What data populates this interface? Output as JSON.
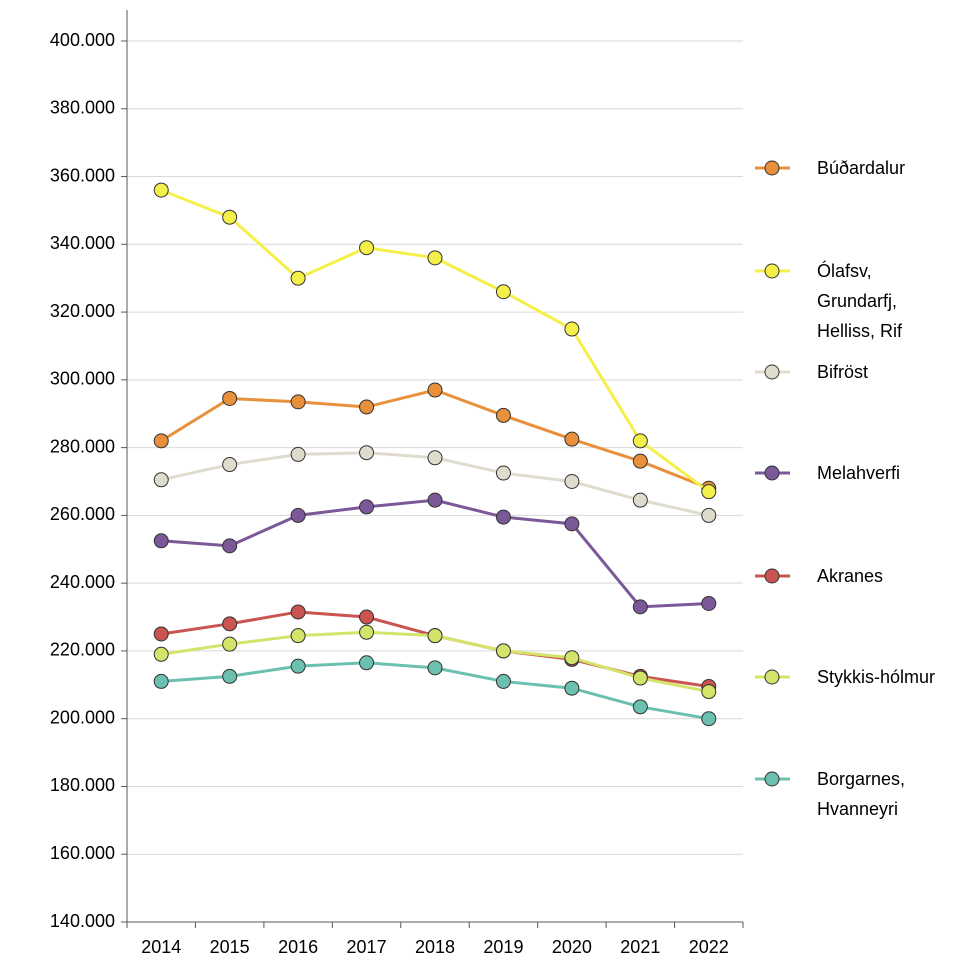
{
  "chart_data": {
    "type": "line",
    "categories": [
      "2014",
      "2015",
      "2016",
      "2017",
      "2018",
      "2019",
      "2020",
      "2021",
      "2022"
    ],
    "series": [
      {
        "name": "Búðardalur",
        "color": "#e8903c",
        "values": [
          282000,
          294500,
          293500,
          292000,
          297000,
          289500,
          282500,
          276000,
          268000
        ]
      },
      {
        "name": "Ólafsv, Grundarfj, Helliss, Rif",
        "color": "#f5ef4a",
        "values": [
          356000,
          348000,
          330000,
          339000,
          336000,
          326000,
          315000,
          282000,
          267000
        ]
      },
      {
        "name": "Bifröst",
        "color": "#e0dccd",
        "values": [
          270500,
          275000,
          278000,
          278500,
          277000,
          272500,
          270000,
          264500,
          260000
        ]
      },
      {
        "name": "Melahverfi",
        "color": "#7b5898",
        "values": [
          252500,
          251000,
          260000,
          262500,
          264500,
          259500,
          257500,
          233000,
          234000
        ]
      },
      {
        "name": "Akranes",
        "color": "#c95450",
        "values": [
          225000,
          228000,
          231500,
          230000,
          224500,
          220000,
          217500,
          212500,
          209500
        ]
      },
      {
        "name": "Stykkis-hólmur",
        "color": "#d4e46a",
        "values": [
          219000,
          222000,
          224500,
          225500,
          224500,
          220000,
          218000,
          212000,
          208000
        ]
      },
      {
        "name": "Borgarnes, Hvanneyri",
        "color": "#6cc0b0",
        "values": [
          211000,
          212500,
          215500,
          216500,
          215000,
          211000,
          209000,
          203500,
          200000
        ]
      }
    ],
    "ylim": [
      140000,
      400000
    ],
    "yticks": [
      {
        "value": 140000,
        "label": "140.000"
      },
      {
        "value": 160000,
        "label": "160.000"
      },
      {
        "value": 180000,
        "label": "180.000"
      },
      {
        "value": 200000,
        "label": "200.000"
      },
      {
        "value": 220000,
        "label": "220.000"
      },
      {
        "value": 240000,
        "label": "240.000"
      },
      {
        "value": 260000,
        "label": "260.000"
      },
      {
        "value": 280000,
        "label": "280.000"
      },
      {
        "value": 300000,
        "label": "300.000"
      },
      {
        "value": 320000,
        "label": "320.000"
      },
      {
        "value": 340000,
        "label": "340.000"
      },
      {
        "value": 360000,
        "label": "360.000"
      },
      {
        "value": 380000,
        "label": "380.000"
      },
      {
        "value": 400000,
        "label": "400.000"
      }
    ],
    "grid": true,
    "legend": "right"
  }
}
